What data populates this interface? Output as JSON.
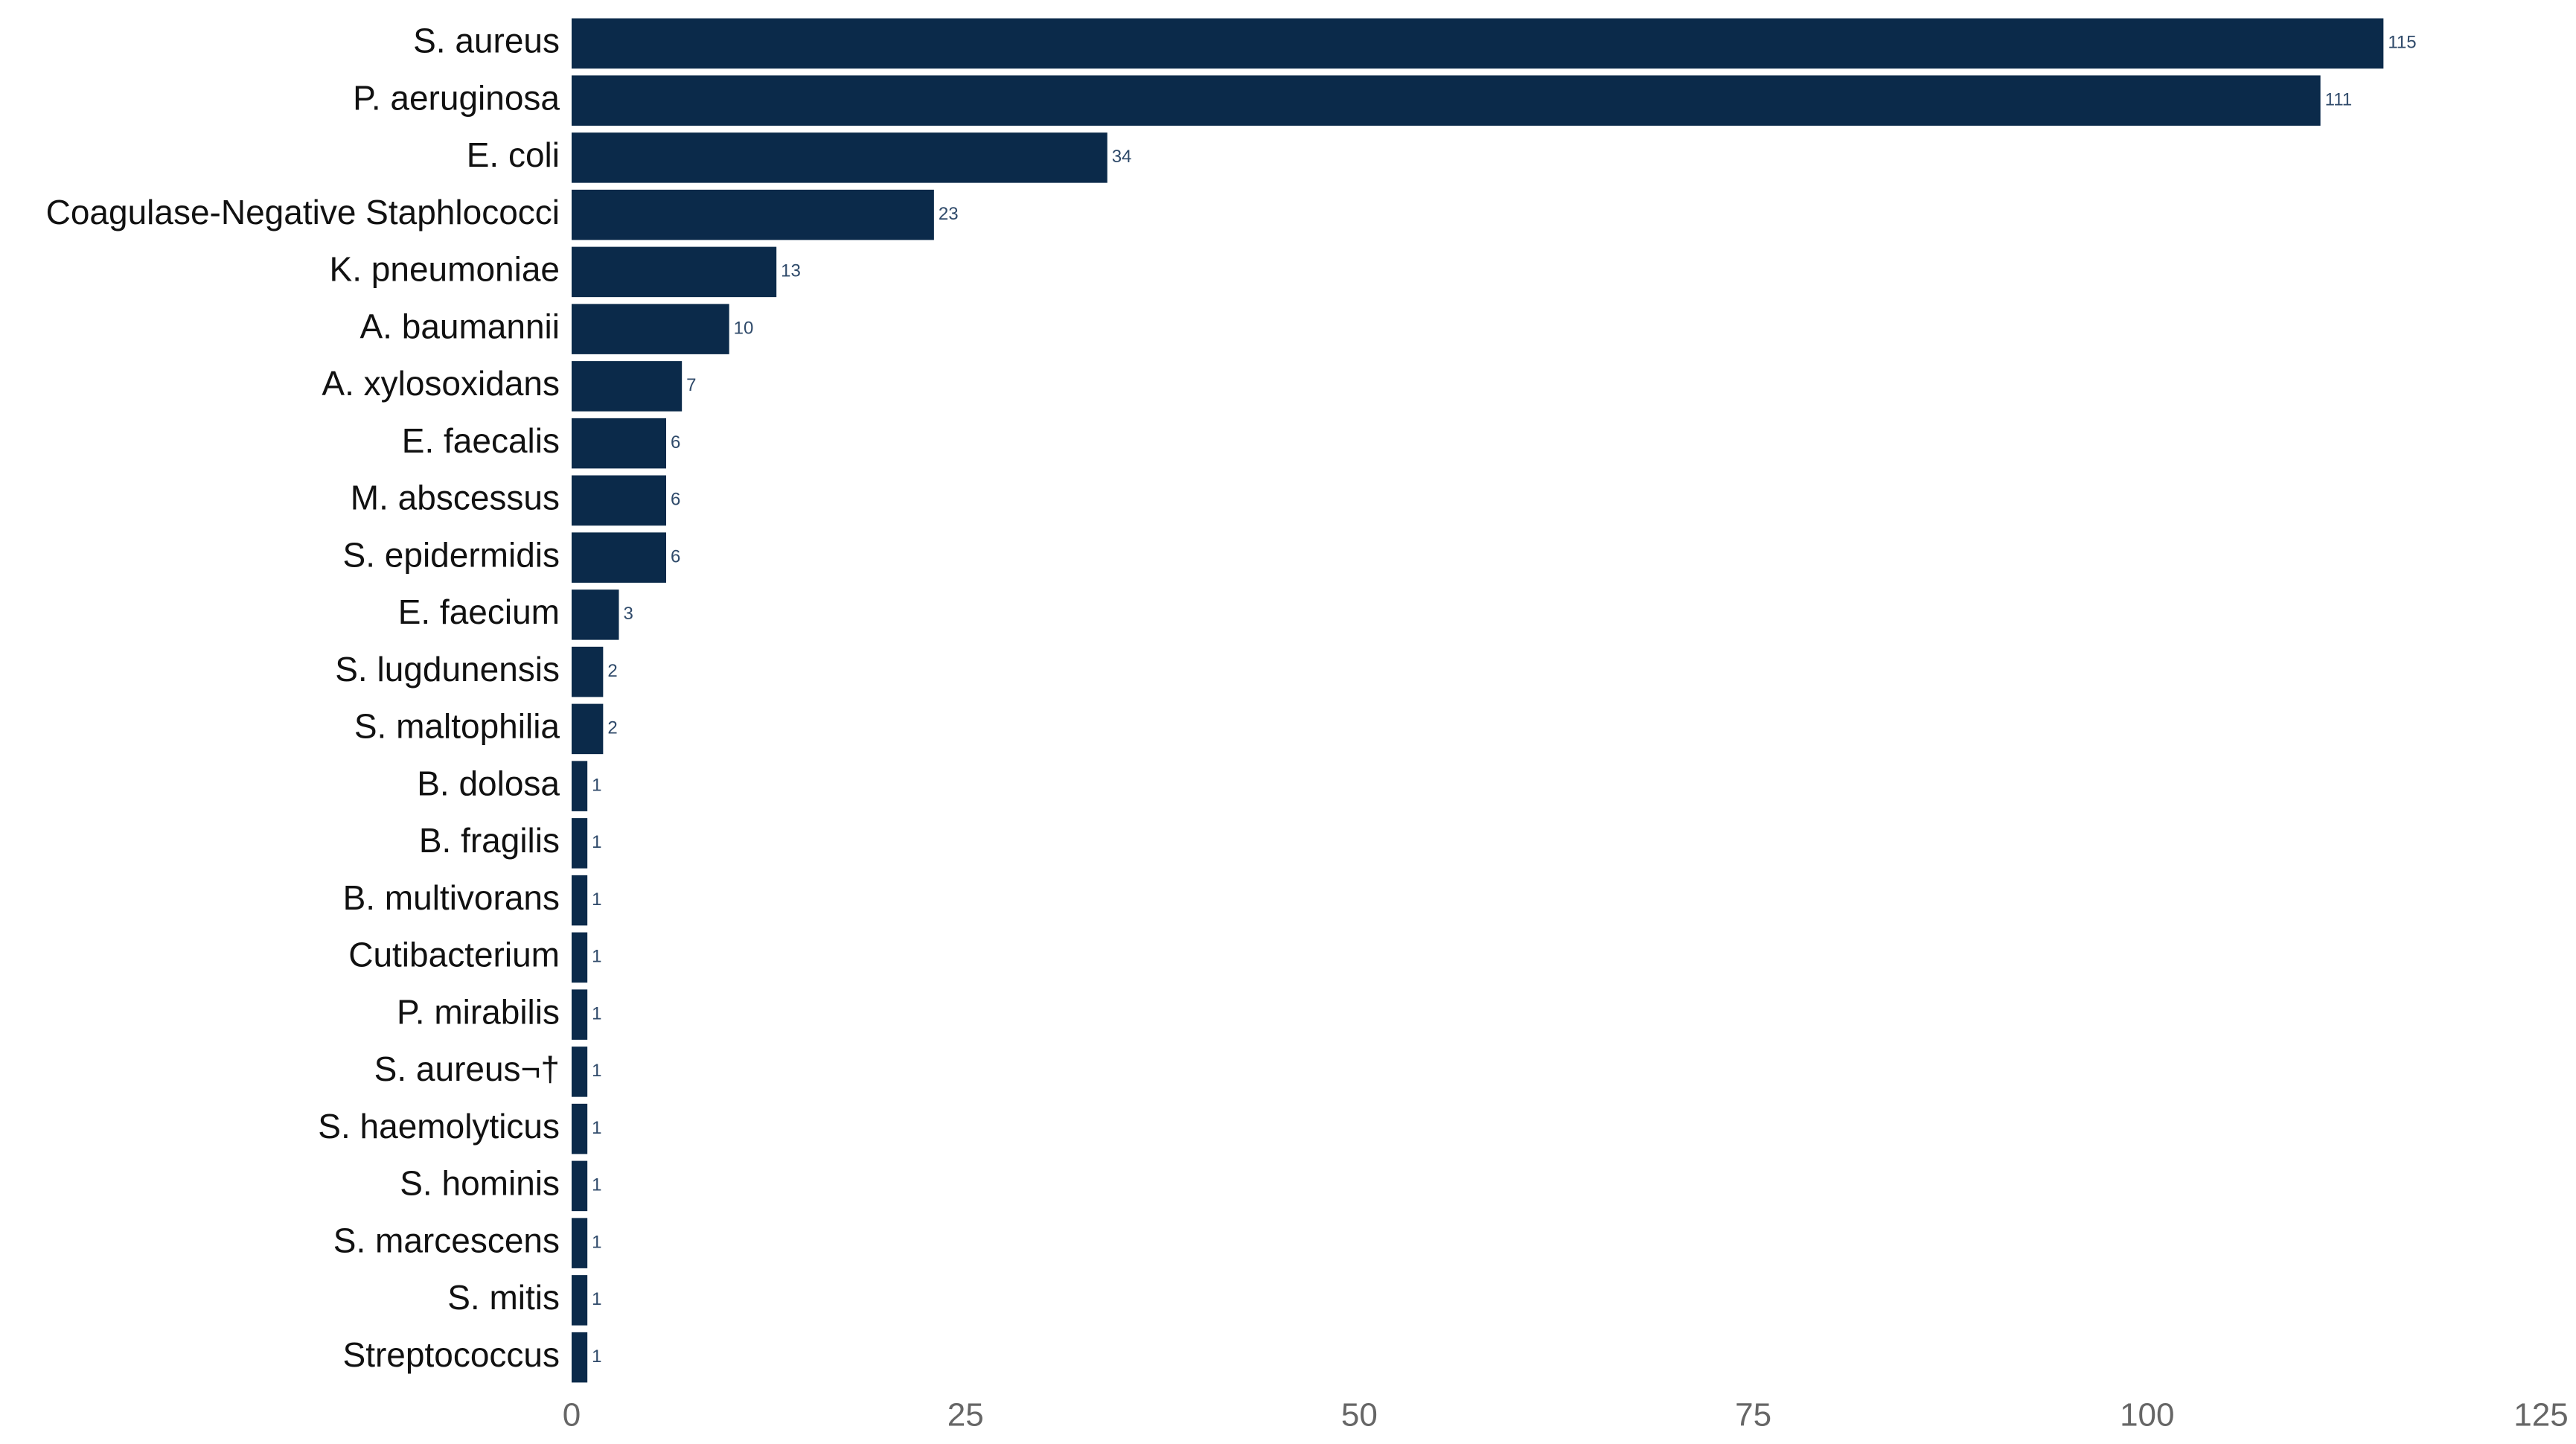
{
  "chart_data": {
    "type": "hbar",
    "categories": [
      "S. aureus",
      "P. aeruginosa",
      "E. coli",
      "Coagulase-Negative Staphlococci",
      "K. pneumoniae",
      "A. baumannii",
      "A. xylosoxidans",
      "E. faecalis",
      "M. abscessus",
      "S. epidermidis",
      "E. faecium",
      "S. lugdunensis",
      "S. maltophilia",
      "B. dolosa",
      "B. fragilis",
      "B. multivorans",
      "Cutibacterium",
      "P. mirabilis",
      "S. aureus¬†",
      "S. haemolyticus",
      "S. hominis",
      "S. marcescens",
      "S. mitis",
      "Streptococcus"
    ],
    "values": [
      115,
      111,
      34,
      23,
      13,
      10,
      7,
      6,
      6,
      6,
      3,
      2,
      2,
      1,
      1,
      1,
      1,
      1,
      1,
      1,
      1,
      1,
      1,
      1
    ],
    "color": "#0b2a4a",
    "xlim": [
      0,
      125
    ],
    "xticks": [
      0,
      25,
      50,
      75,
      100,
      125
    ],
    "grid": false
  }
}
